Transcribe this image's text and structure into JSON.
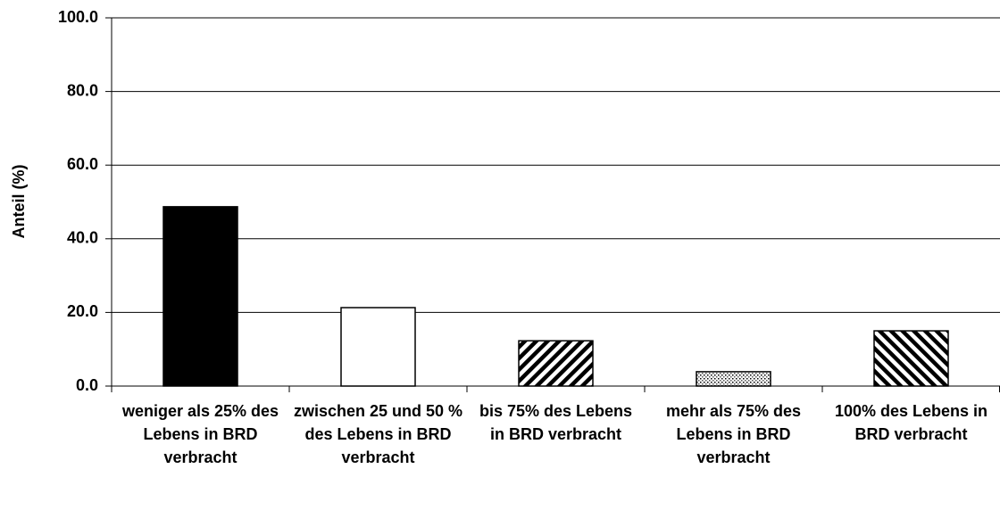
{
  "chart_data": {
    "type": "bar",
    "y_label": "Anteil (%)",
    "categories": [
      "weniger als 25% des Lebens in BRD verbracht",
      "zwischen 25 und 50 % des Lebens in BRD verbracht",
      "bis 75% des Lebens in BRD verbracht",
      "mehr als 75% des Lebens in BRD verbracht",
      "100% des Lebens in BRD verbracht"
    ],
    "values": [
      48.7,
      21.3,
      12.3,
      3.9,
      15.0
    ],
    "patterns": [
      "solid",
      "empty",
      "forward-hatch",
      "dots",
      "backward-hatch"
    ],
    "color": "#000000",
    "ylim": [
      0,
      100
    ],
    "yticks": [
      {
        "value": 0,
        "label": "0.0"
      },
      {
        "value": 20,
        "label": "20.0"
      },
      {
        "value": 40,
        "label": "40.0"
      },
      {
        "value": 60,
        "label": "60.0"
      },
      {
        "value": 80,
        "label": "80.0"
      },
      {
        "value": 100,
        "label": "100.0"
      }
    ],
    "grid": true
  }
}
